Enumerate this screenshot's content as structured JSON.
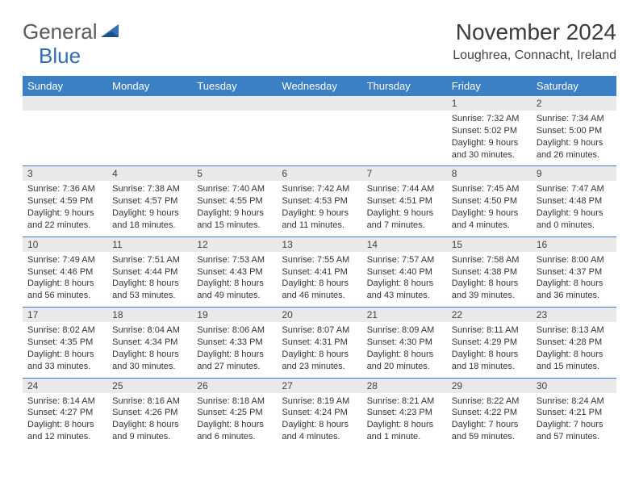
{
  "brand": {
    "name1": "General",
    "name2": "Blue"
  },
  "title": "November 2024",
  "subtitle": "Loughrea, Connacht, Ireland",
  "colors": {
    "accent": "#3b7fc4",
    "header_bg": "#3b7fc4",
    "header_text": "#ffffff",
    "daynum_bg": "#e9e9e9",
    "body_text": "#333333",
    "page_bg": "#ffffff"
  },
  "columns": [
    "Sunday",
    "Monday",
    "Tuesday",
    "Wednesday",
    "Thursday",
    "Friday",
    "Saturday"
  ],
  "weeks": [
    [
      null,
      null,
      null,
      null,
      null,
      {
        "n": "1",
        "sr": "7:32 AM",
        "ss": "5:02 PM",
        "dl": "9 hours and 30 minutes."
      },
      {
        "n": "2",
        "sr": "7:34 AM",
        "ss": "5:00 PM",
        "dl": "9 hours and 26 minutes."
      }
    ],
    [
      {
        "n": "3",
        "sr": "7:36 AM",
        "ss": "4:59 PM",
        "dl": "9 hours and 22 minutes."
      },
      {
        "n": "4",
        "sr": "7:38 AM",
        "ss": "4:57 PM",
        "dl": "9 hours and 18 minutes."
      },
      {
        "n": "5",
        "sr": "7:40 AM",
        "ss": "4:55 PM",
        "dl": "9 hours and 15 minutes."
      },
      {
        "n": "6",
        "sr": "7:42 AM",
        "ss": "4:53 PM",
        "dl": "9 hours and 11 minutes."
      },
      {
        "n": "7",
        "sr": "7:44 AM",
        "ss": "4:51 PM",
        "dl": "9 hours and 7 minutes."
      },
      {
        "n": "8",
        "sr": "7:45 AM",
        "ss": "4:50 PM",
        "dl": "9 hours and 4 minutes."
      },
      {
        "n": "9",
        "sr": "7:47 AM",
        "ss": "4:48 PM",
        "dl": "9 hours and 0 minutes."
      }
    ],
    [
      {
        "n": "10",
        "sr": "7:49 AM",
        "ss": "4:46 PM",
        "dl": "8 hours and 56 minutes."
      },
      {
        "n": "11",
        "sr": "7:51 AM",
        "ss": "4:44 PM",
        "dl": "8 hours and 53 minutes."
      },
      {
        "n": "12",
        "sr": "7:53 AM",
        "ss": "4:43 PM",
        "dl": "8 hours and 49 minutes."
      },
      {
        "n": "13",
        "sr": "7:55 AM",
        "ss": "4:41 PM",
        "dl": "8 hours and 46 minutes."
      },
      {
        "n": "14",
        "sr": "7:57 AM",
        "ss": "4:40 PM",
        "dl": "8 hours and 43 minutes."
      },
      {
        "n": "15",
        "sr": "7:58 AM",
        "ss": "4:38 PM",
        "dl": "8 hours and 39 minutes."
      },
      {
        "n": "16",
        "sr": "8:00 AM",
        "ss": "4:37 PM",
        "dl": "8 hours and 36 minutes."
      }
    ],
    [
      {
        "n": "17",
        "sr": "8:02 AM",
        "ss": "4:35 PM",
        "dl": "8 hours and 33 minutes."
      },
      {
        "n": "18",
        "sr": "8:04 AM",
        "ss": "4:34 PM",
        "dl": "8 hours and 30 minutes."
      },
      {
        "n": "19",
        "sr": "8:06 AM",
        "ss": "4:33 PM",
        "dl": "8 hours and 27 minutes."
      },
      {
        "n": "20",
        "sr": "8:07 AM",
        "ss": "4:31 PM",
        "dl": "8 hours and 23 minutes."
      },
      {
        "n": "21",
        "sr": "8:09 AM",
        "ss": "4:30 PM",
        "dl": "8 hours and 20 minutes."
      },
      {
        "n": "22",
        "sr": "8:11 AM",
        "ss": "4:29 PM",
        "dl": "8 hours and 18 minutes."
      },
      {
        "n": "23",
        "sr": "8:13 AM",
        "ss": "4:28 PM",
        "dl": "8 hours and 15 minutes."
      }
    ],
    [
      {
        "n": "24",
        "sr": "8:14 AM",
        "ss": "4:27 PM",
        "dl": "8 hours and 12 minutes."
      },
      {
        "n": "25",
        "sr": "8:16 AM",
        "ss": "4:26 PM",
        "dl": "8 hours and 9 minutes."
      },
      {
        "n": "26",
        "sr": "8:18 AM",
        "ss": "4:25 PM",
        "dl": "8 hours and 6 minutes."
      },
      {
        "n": "27",
        "sr": "8:19 AM",
        "ss": "4:24 PM",
        "dl": "8 hours and 4 minutes."
      },
      {
        "n": "28",
        "sr": "8:21 AM",
        "ss": "4:23 PM",
        "dl": "8 hours and 1 minute."
      },
      {
        "n": "29",
        "sr": "8:22 AM",
        "ss": "4:22 PM",
        "dl": "7 hours and 59 minutes."
      },
      {
        "n": "30",
        "sr": "8:24 AM",
        "ss": "4:21 PM",
        "dl": "7 hours and 57 minutes."
      }
    ]
  ],
  "labels": {
    "sunrise": "Sunrise:",
    "sunset": "Sunset:",
    "daylight": "Daylight:"
  }
}
